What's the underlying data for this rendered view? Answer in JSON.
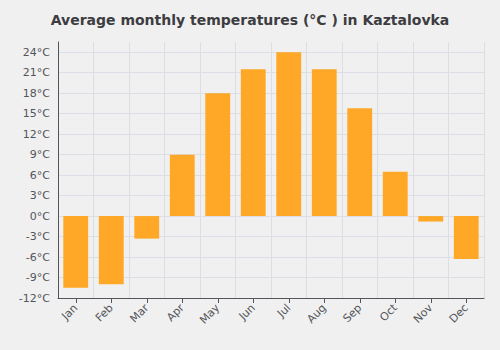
{
  "chart_data": {
    "type": "bar",
    "title": "Average monthly temperatures (°C ) in Kaztalovka",
    "categories": [
      "Jan",
      "Feb",
      "Mar",
      "Apr",
      "May",
      "Jun",
      "Jul",
      "Aug",
      "Sep",
      "Oct",
      "Nov",
      "Dec"
    ],
    "values": [
      -10.5,
      -10.0,
      -3.3,
      9.0,
      18.0,
      21.5,
      24.0,
      21.5,
      15.8,
      6.5,
      -0.8,
      -6.3
    ],
    "color": "#FFA726",
    "ylim": [
      -12,
      25.5
    ],
    "yticks": [
      {
        "value": -12,
        "label": "-12°C"
      },
      {
        "value": -9,
        "label": "-9°C"
      },
      {
        "value": -6,
        "label": "-6°C"
      },
      {
        "value": -3,
        "label": "-3°C"
      },
      {
        "value": 0,
        "label": "0°C"
      },
      {
        "value": 3,
        "label": "3°C"
      },
      {
        "value": 6,
        "label": "6°C"
      },
      {
        "value": 9,
        "label": "9°C"
      },
      {
        "value": 12,
        "label": "12°C"
      },
      {
        "value": 15,
        "label": "15°C"
      },
      {
        "value": 18,
        "label": "18°C"
      },
      {
        "value": 21,
        "label": "21°C"
      },
      {
        "value": 24,
        "label": "24°C"
      }
    ],
    "grid": true
  }
}
